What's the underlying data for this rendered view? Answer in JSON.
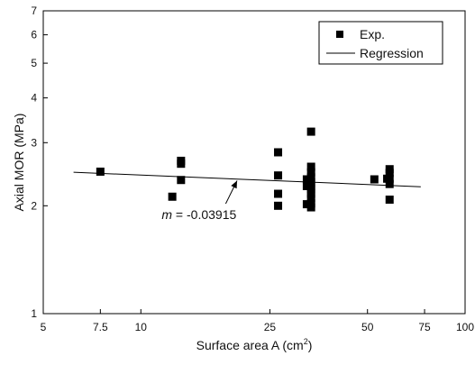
{
  "chart_data": {
    "type": "scatter",
    "xlabel": "Surface area A (cm",
    "xlabel_sup": "2",
    "xlabel_close": ")",
    "ylabel": "Axial MOR (MPa)",
    "x_scale": "log",
    "y_scale": "log",
    "xlim": [
      5,
      100
    ],
    "ylim": [
      1,
      7
    ],
    "x_ticks": [
      5,
      7.5,
      10,
      25,
      50,
      75,
      100
    ],
    "x_tick_labels": [
      "5",
      "7.5",
      "10",
      "25",
      "50",
      "75",
      "100"
    ],
    "y_ticks": [
      1,
      2,
      3,
      4,
      5,
      6,
      7
    ],
    "y_tick_labels": [
      "1",
      "2",
      "3",
      "4",
      "5",
      "6",
      "7"
    ],
    "grid": false,
    "legend_position": "top-right",
    "series": [
      {
        "name": "Exp.",
        "marker": "square",
        "color": "#000000",
        "points": [
          [
            7.5,
            2.49
          ],
          [
            12.5,
            2.12
          ],
          [
            13.3,
            2.67
          ],
          [
            13.3,
            2.62
          ],
          [
            13.3,
            2.36
          ],
          [
            26.5,
            2.82
          ],
          [
            26.5,
            2.43
          ],
          [
            26.5,
            2.16
          ],
          [
            26.5,
            2.0
          ],
          [
            33.5,
            3.22
          ],
          [
            33.5,
            2.57
          ],
          [
            33.5,
            2.48
          ],
          [
            33.5,
            2.4
          ],
          [
            33.5,
            2.33
          ],
          [
            33.5,
            2.27
          ],
          [
            33.5,
            2.22
          ],
          [
            33.5,
            2.16
          ],
          [
            33.5,
            2.1
          ],
          [
            33.5,
            2.03
          ],
          [
            33.5,
            1.98
          ],
          [
            32.5,
            2.37
          ],
          [
            32.5,
            2.27
          ],
          [
            32.5,
            2.02
          ],
          [
            52.5,
            2.37
          ],
          [
            58.5,
            2.53
          ],
          [
            58.5,
            2.47
          ],
          [
            58.5,
            2.38
          ],
          [
            58.5,
            2.3
          ],
          [
            58.5,
            2.08
          ],
          [
            57.5,
            2.38
          ]
        ]
      },
      {
        "name": "Regression",
        "type": "line",
        "color": "#000000",
        "x": [
          6.2,
          73
        ],
        "y": [
          2.48,
          2.26
        ]
      }
    ],
    "annotations": [
      {
        "prefix": "m",
        "text": " = -0.03915",
        "x": 12.6,
        "y": 1.89,
        "arrow_to": [
          19.8,
          2.35
        ]
      }
    ]
  }
}
